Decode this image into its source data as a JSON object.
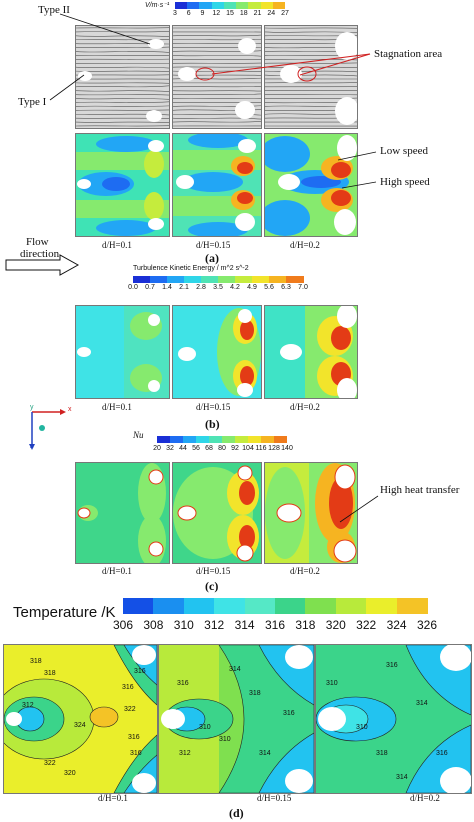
{
  "colors": {
    "jet": [
      "#1a2fd6",
      "#1e6cf2",
      "#22a6f5",
      "#2fd6e8",
      "#4fe3b5",
      "#86ea6e",
      "#c5ec3d",
      "#f2e42b",
      "#f6b421",
      "#f07b1c",
      "#e33b16",
      "#c9161b"
    ],
    "temp": [
      "#1450e6",
      "#1a8ff0",
      "#22c3f0",
      "#3fe3e6",
      "#55e8c6",
      "#3bd48a",
      "#7fe04f",
      "#b8ea3b",
      "#eaee2b",
      "#f4c326",
      "#f08c22",
      "#e8501b",
      "#e02020"
    ],
    "streak": "#555555",
    "white": "#ffffff"
  },
  "panel_a": {
    "type_ii": "Type II",
    "type_i": "Type I",
    "cbar_unit": "V/m·s⁻¹",
    "ticks": [
      "3",
      "6",
      "9",
      "12",
      "15",
      "18",
      "21",
      "24",
      "27"
    ],
    "stagnation": "Stagnation area",
    "low_speed": "Low speed",
    "high_speed": "High speed",
    "dh": [
      "d/H=0.1",
      "d/H=0.15",
      "d/H=0.2"
    ],
    "caption": "(a)"
  },
  "flow": {
    "line1": "Flow",
    "line2": "direction"
  },
  "panel_b": {
    "cbar_title": "Turbulence Kinetic Energy / m^2 s^-2",
    "ticks": [
      "0.0",
      "0.7",
      "1.4",
      "2.1",
      "2.8",
      "3.5",
      "4.2",
      "4.9",
      "5.6",
      "6.3",
      "7.0"
    ],
    "dh": [
      "d/H=0.1",
      "d/H=0.15",
      "d/H=0.2"
    ],
    "caption": "(b)"
  },
  "axes": {
    "x": "x",
    "z": "z",
    "y": "y"
  },
  "panel_c": {
    "cbar_title": "Nu",
    "ticks": [
      "20",
      "32",
      "44",
      "56",
      "68",
      "80",
      "92",
      "104",
      "116",
      "128",
      "140"
    ],
    "high_heat": "High heat transfer",
    "dh": [
      "d/H=0.1",
      "d/H=0.15",
      "d/H=0.2"
    ],
    "caption": "(c)"
  },
  "panel_d": {
    "cbar_title": "Temperature /K",
    "ticks": [
      "306",
      "308",
      "310",
      "312",
      "314",
      "316",
      "318",
      "320",
      "322",
      "324",
      "326"
    ],
    "contour_labels_1": [
      "318",
      "322",
      "324",
      "322",
      "316",
      "312",
      "320",
      "316",
      "318",
      "316",
      "316"
    ],
    "contour_labels_2": [
      "316",
      "314",
      "310",
      "312",
      "316",
      "318",
      "314",
      "310"
    ],
    "contour_labels_3": [
      "316",
      "314",
      "310",
      "316",
      "318",
      "310",
      "314"
    ],
    "dh": [
      "d/H=0.1",
      "d/H=0.15",
      "d/H=0.2"
    ],
    "caption": "(d)"
  }
}
